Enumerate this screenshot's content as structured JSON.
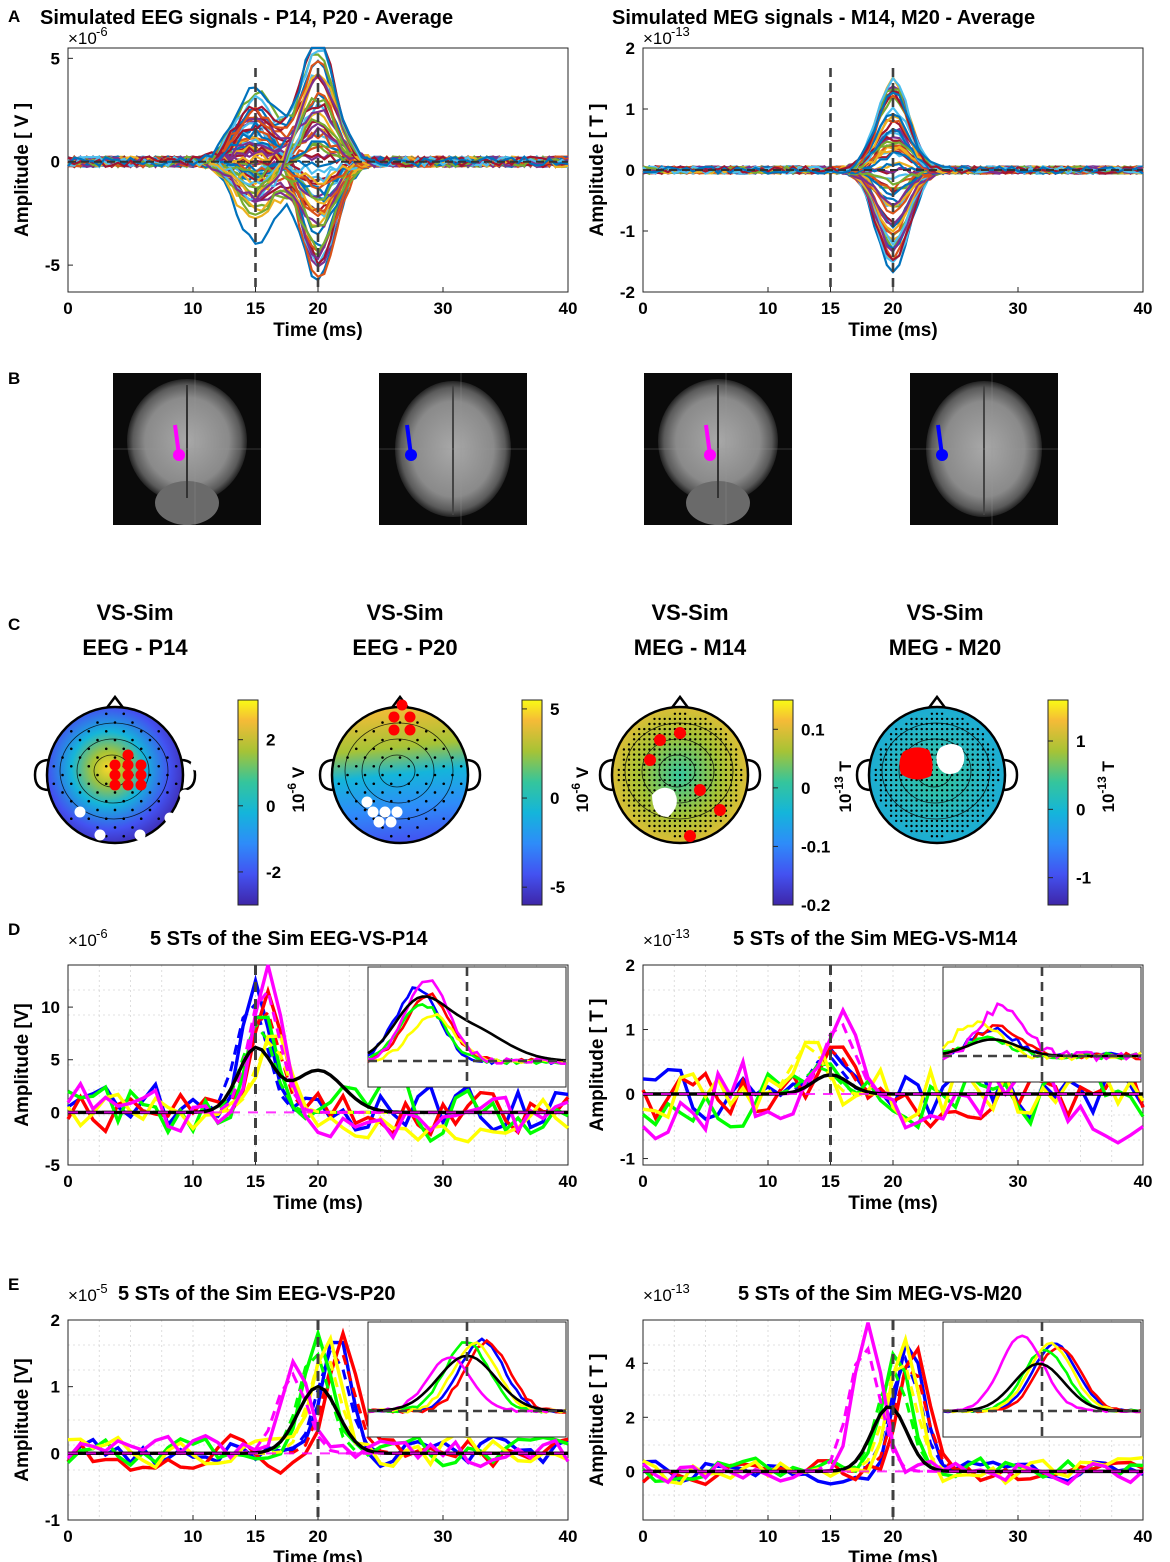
{
  "panels": {
    "A": "A",
    "B": "B",
    "C": "C",
    "D": "D",
    "E": "E"
  },
  "colors": {
    "blue": "#0000ff",
    "red": "#ff0000",
    "green": "#00ff00",
    "yellow": "#ffff00",
    "magenta": "#ff00ff",
    "black": "#000000",
    "dashed_gray": "#404040",
    "mri_pink": "#ff00ff",
    "mri_blue": "#0000ff"
  },
  "chart_data": [
    {
      "id": "eeg_avg",
      "type": "line",
      "title": "Simulated EEG signals - P14, P20 - Average",
      "exponent_base": "×10",
      "exponent_sup": "-6",
      "xlabel": "Time (ms)",
      "ylabel": "Amplitude  [ V ]",
      "xlim": [
        0,
        40
      ],
      "ylim": [
        -6.3,
        5.5
      ],
      "xticks": [
        0,
        10,
        15,
        20,
        30,
        40
      ],
      "yticks": [
        -5,
        0,
        5
      ],
      "vlines": [
        15,
        20
      ],
      "series_count": 64,
      "peaks": [
        {
          "t": 15,
          "amp": 3.3,
          "w": 1.6
        },
        {
          "t": 20,
          "amp": 5.2,
          "w": 1.4
        }
      ],
      "grid": false
    },
    {
      "id": "meg_avg",
      "type": "line",
      "title": "Simulated MEG signals - M14, M20 - Average",
      "exponent_base": "×10",
      "exponent_sup": "-13",
      "xlabel": "Time (ms)",
      "ylabel": "Amplitude  [ T ]",
      "xlim": [
        0,
        40
      ],
      "ylim": [
        -2,
        2
      ],
      "xticks": [
        0,
        10,
        15,
        20,
        30,
        40
      ],
      "yticks": [
        -2,
        -1,
        0,
        1,
        2
      ],
      "vlines": [
        15,
        20
      ],
      "series_count": 64,
      "peaks": [
        {
          "t": 20,
          "amp": 1.55,
          "w": 1.3
        }
      ],
      "grid": false
    },
    {
      "id": "topo_eeg_p14",
      "type": "heatmap",
      "title_lines": [
        "VS-Sim",
        "EEG - P14"
      ],
      "colorbar_ticks": [
        2,
        0,
        -2
      ],
      "colorbar_label": "10",
      "colorbar_sup": "-6",
      "colorbar_unit": " V",
      "range": [
        -3,
        3.2
      ]
    },
    {
      "id": "topo_eeg_p20",
      "type": "heatmap",
      "title_lines": [
        "VS-Sim",
        "EEG - P20"
      ],
      "colorbar_ticks": [
        5,
        0,
        -5
      ],
      "colorbar_label": "10",
      "colorbar_sup": "-6",
      "colorbar_unit": " V",
      "range": [
        -6,
        5.5
      ]
    },
    {
      "id": "topo_meg_m14",
      "type": "heatmap",
      "title_lines": [
        "VS-Sim",
        "MEG - M14"
      ],
      "colorbar_ticks": [
        0.1,
        0,
        -0.1,
        -0.2
      ],
      "colorbar_label": "10",
      "colorbar_sup": "-13",
      "colorbar_unit": " T",
      "range": [
        -0.2,
        0.15
      ]
    },
    {
      "id": "topo_meg_m20",
      "type": "heatmap",
      "title_lines": [
        "VS-Sim",
        "MEG - M20"
      ],
      "colorbar_ticks": [
        1,
        0,
        -1
      ],
      "colorbar_label": "10",
      "colorbar_sup": "-13",
      "colorbar_unit": " T",
      "range": [
        -1.4,
        1.6
      ]
    },
    {
      "id": "st_eeg_p14",
      "type": "line",
      "title": "5 STs of the Sim EEG-VS-P14",
      "exponent_base": "×10",
      "exponent_sup": "-6",
      "xlabel": "Time (ms)",
      "ylabel": "Amplitude [V]",
      "xlim": [
        0,
        40
      ],
      "ylim": [
        -5,
        14
      ],
      "xticks": [
        0,
        10,
        15,
        20,
        30,
        40
      ],
      "yticks": [
        -5,
        0,
        5,
        10
      ],
      "vlines": [
        15
      ],
      "grid": true,
      "mean": {
        "peaks": [
          {
            "t": 15,
            "amp": 6,
            "w": 1.4
          },
          {
            "t": 20,
            "amp": 4,
            "w": 2
          }
        ]
      },
      "trials": [
        {
          "color": "blue",
          "peak_t": 15,
          "amp": 12.5,
          "noise": 3
        },
        {
          "color": "red",
          "peak_t": 16,
          "amp": 11.5,
          "noise": 2.5
        },
        {
          "color": "green",
          "peak_t": 15.5,
          "amp": 10,
          "noise": 3
        },
        {
          "color": "yellow",
          "peak_t": 16.5,
          "amp": 8,
          "noise": 2.5
        },
        {
          "color": "magenta",
          "peak_t": 16,
          "amp": 14,
          "noise": 3
        }
      ]
    },
    {
      "id": "st_meg_m14",
      "type": "line",
      "title": "5 STs of the Sim MEG-VS-M14",
      "exponent_base": "×10",
      "exponent_sup": "-13",
      "xlabel": "Time (ms)",
      "ylabel": "Amplitude  [ T ]",
      "xlim": [
        0,
        40
      ],
      "ylim": [
        -1.1,
        2
      ],
      "xticks": [
        0,
        10,
        15,
        20,
        30,
        40
      ],
      "yticks": [
        -1,
        0,
        1,
        2
      ],
      "vlines": [
        15
      ],
      "grid": true,
      "mean": {
        "peaks": [
          {
            "t": 15,
            "amp": 0.3,
            "w": 1.4
          }
        ]
      },
      "trials": [
        {
          "color": "blue",
          "peak_t": 15,
          "amp": 0.7,
          "noise": 0.5
        },
        {
          "color": "red",
          "peak_t": 15.5,
          "amp": 0.8,
          "noise": 0.5
        },
        {
          "color": "green",
          "peak_t": 14.5,
          "amp": 0.5,
          "noise": 0.5
        },
        {
          "color": "yellow",
          "peak_t": 13.5,
          "amp": 0.9,
          "noise": 0.6
        },
        {
          "color": "magenta",
          "peak_t": 16,
          "amp": 1.3,
          "noise": 0.7
        }
      ]
    },
    {
      "id": "st_eeg_p20",
      "type": "line",
      "title": "5 STs of the Sim EEG-VS-P20",
      "exponent_base": "×10",
      "exponent_sup": "-5",
      "xlabel": "Time (ms)",
      "ylabel": "Amplitude [V]",
      "xlim": [
        0,
        40
      ],
      "ylim": [
        -1,
        2
      ],
      "xticks": [
        0,
        10,
        15,
        20,
        30,
        40
      ],
      "yticks": [
        -1,
        0,
        1,
        2
      ],
      "vlines": [
        20
      ],
      "grid": true,
      "mean": {
        "peaks": [
          {
            "t": 20,
            "amp": 1.0,
            "w": 1.6
          }
        ]
      },
      "trials": [
        {
          "color": "blue",
          "peak_t": 21.5,
          "amp": 1.85,
          "noise": 0.25
        },
        {
          "color": "red",
          "peak_t": 22,
          "amp": 1.8,
          "noise": 0.3
        },
        {
          "color": "green",
          "peak_t": 20,
          "amp": 1.8,
          "noise": 0.25
        },
        {
          "color": "yellow",
          "peak_t": 20.8,
          "amp": 1.75,
          "noise": 0.3
        },
        {
          "color": "magenta",
          "peak_t": 18.2,
          "amp": 1.4,
          "noise": 0.25
        }
      ]
    },
    {
      "id": "st_meg_m20",
      "type": "line",
      "title": "5 STs of the Sim MEG-VS-M20",
      "exponent_base": "×10",
      "exponent_sup": "-13",
      "xlabel": "Time (ms)",
      "ylabel": "Amplitude  [ T ]",
      "xlim": [
        0,
        40
      ],
      "ylim": [
        -1.8,
        5.6
      ],
      "xticks": [
        0,
        10,
        15,
        20,
        30,
        40
      ],
      "yticks": [
        0,
        2,
        4
      ],
      "vlines": [
        20
      ],
      "grid": true,
      "mean": {
        "peaks": [
          {
            "t": 19.7,
            "amp": 2.4,
            "w": 1.4
          }
        ]
      },
      "trials": [
        {
          "color": "blue",
          "peak_t": 21.3,
          "amp": 4.9,
          "noise": 0.5
        },
        {
          "color": "red",
          "peak_t": 21.7,
          "amp": 4.7,
          "noise": 0.5
        },
        {
          "color": "green",
          "peak_t": 20.3,
          "amp": 4.5,
          "noise": 0.5
        },
        {
          "color": "yellow",
          "peak_t": 20.9,
          "amp": 4.9,
          "noise": 0.6
        },
        {
          "color": "magenta",
          "peak_t": 18,
          "amp": 5.5,
          "noise": 0.5
        }
      ]
    }
  ],
  "mri_images": [
    {
      "id": "mri-coronal-eeg",
      "view": "coronal",
      "dipole": "mri_pink"
    },
    {
      "id": "mri-axial-eeg",
      "view": "axial",
      "dipole": "mri_blue"
    },
    {
      "id": "mri-coronal-meg",
      "view": "coronal",
      "dipole": "mri_pink"
    },
    {
      "id": "mri-axial-meg",
      "view": "axial",
      "dipole": "mri_blue"
    }
  ]
}
